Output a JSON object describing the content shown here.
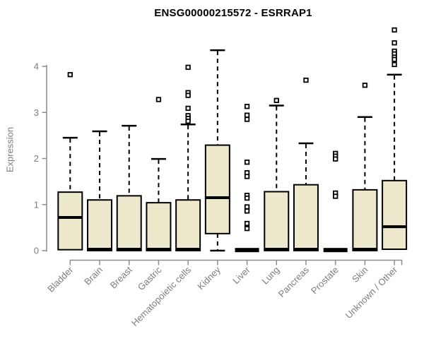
{
  "figure": {
    "title": "ENSG00000215572 - ESRRAP1",
    "y_axis_label": "Expression"
  },
  "colors": {
    "box_fill": "#EDE7CB",
    "box_border": "#000000",
    "median": "#000000",
    "whisker": "#000000",
    "outlier": "#000000",
    "axis_line": "#8C8C8C",
    "tick_label": "#7D7D7D",
    "title": "#000000"
  },
  "chart_data": {
    "type": "boxplot",
    "title": "ENSG00000215572 - ESRRAP1",
    "xlabel": "",
    "ylabel": "Expression",
    "ylim": [
      0,
      4.9
    ],
    "yticks": [
      0,
      1,
      2,
      3,
      4
    ],
    "grid": false,
    "legend": "none",
    "categories": [
      "Bladder",
      "Brain",
      "Breast",
      "Gastric",
      "Hematopoietic cells",
      "Kidney",
      "Liver",
      "Lung",
      "Pancreas",
      "Prostate",
      "Skin",
      "Unknown / Other"
    ],
    "boxes": [
      {
        "category": "Bladder",
        "whisker_low": 0.02,
        "q1": 0.02,
        "median": 0.72,
        "q3": 1.27,
        "whisker_high": 2.45,
        "outliers": [
          3.82
        ]
      },
      {
        "category": "Brain",
        "whisker_low": 0,
        "q1": 0,
        "median": 0.03,
        "q3": 1.1,
        "whisker_high": 2.59,
        "outliers": []
      },
      {
        "category": "Breast",
        "whisker_low": 0,
        "q1": 0,
        "median": 0.03,
        "q3": 1.19,
        "whisker_high": 2.71,
        "outliers": []
      },
      {
        "category": "Gastric",
        "whisker_low": 0,
        "q1": 0,
        "median": 0.03,
        "q3": 1.04,
        "whisker_high": 1.99,
        "outliers": [
          3.28
        ]
      },
      {
        "category": "Hematopoietic cells",
        "whisker_low": 0,
        "q1": 0,
        "median": 0.03,
        "q3": 1.1,
        "whisker_high": 2.74,
        "outliers": [
          3.98,
          3.43,
          3.37,
          3.09,
          2.93,
          2.87,
          2.81
        ]
      },
      {
        "category": "Kidney",
        "whisker_low": 0,
        "q1": 0.37,
        "median": 1.15,
        "q3": 2.29,
        "whisker_high": 4.35,
        "outliers": []
      },
      {
        "category": "Liver",
        "whisker_low": 0,
        "q1": 0,
        "median": 0.02,
        "q3": 0.02,
        "whisker_high": 0.02,
        "outliers": [
          3.13,
          2.94,
          2.85,
          1.92,
          1.69,
          1.61,
          1.2,
          1.14,
          0.95,
          0.86,
          0.59,
          0.48
        ]
      },
      {
        "category": "Lung",
        "whisker_low": 0,
        "q1": 0,
        "median": 0.03,
        "q3": 1.28,
        "whisker_high": 3.15,
        "outliers": [
          3.26
        ]
      },
      {
        "category": "Pancreas",
        "whisker_low": 0,
        "q1": 0,
        "median": 0.03,
        "q3": 1.43,
        "whisker_high": 2.33,
        "outliers": [
          3.7
        ]
      },
      {
        "category": "Prostate",
        "whisker_low": 0,
        "q1": 0,
        "median": 0.02,
        "q3": 0.02,
        "whisker_high": 0.02,
        "outliers": [
          2.11,
          2.05,
          1.99,
          1.25,
          1.18
        ]
      },
      {
        "category": "Skin",
        "whisker_low": 0,
        "q1": 0,
        "median": 0.03,
        "q3": 1.32,
        "whisker_high": 2.9,
        "outliers": [
          3.59
        ]
      },
      {
        "category": "Unknown / Other",
        "whisker_low": 0.03,
        "q1": 0.03,
        "median": 0.52,
        "q3": 1.52,
        "whisker_high": 3.82,
        "outliers": [
          4.79,
          4.51,
          4.33,
          4.27,
          4.2,
          4.15,
          4.04
        ]
      }
    ]
  }
}
